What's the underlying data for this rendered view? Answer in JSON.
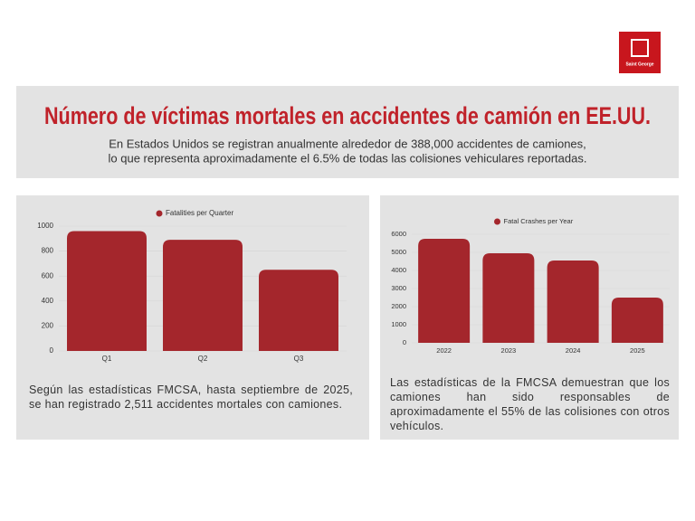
{
  "logo": {
    "text": "Saint George"
  },
  "header": {
    "title": "Número de víctimas mortales en accidentes de camión en EE.UU.",
    "subtitle": [
      "En Estados Unidos se registran anualmente alrededor de 388,000 accidentes de camiones,",
      "lo que representa aproximadamente el 6.5% de todas las colisiones vehiculares reportadas."
    ]
  },
  "chart_data": [
    {
      "type": "bar",
      "categories": [
        "Q1",
        "Q2",
        "Q3"
      ],
      "series": [
        {
          "name": "Fatalities per Quarter",
          "color": "#a4262c",
          "values": [
            960,
            890,
            650
          ]
        }
      ],
      "ylim": [
        0,
        1000
      ],
      "yticks": [
        0,
        200,
        400,
        600,
        800,
        1000
      ],
      "grid": true,
      "legend": "top"
    },
    {
      "type": "bar",
      "categories": [
        "2022",
        "2023",
        "2024",
        "2025"
      ],
      "series": [
        {
          "name": "Fatal Crashes per Year",
          "color": "#a4262c",
          "values": [
            5750,
            4950,
            4550,
            2500
          ]
        }
      ],
      "ylim": [
        0,
        6000
      ],
      "yticks": [
        0,
        1000,
        2000,
        3000,
        4000,
        5000,
        6000
      ],
      "grid": true,
      "legend": "top"
    }
  ],
  "captions": [
    "Según las estadísticas FMCSA, hasta septiembre de 2025, se han registrado 2,511 accidentes mortales con camiones.",
    "Las estadísticas de la FMCSA demuestran que los camiones han sido responsables de aproximadamente el 55% de las colisiones con otros vehículos."
  ]
}
